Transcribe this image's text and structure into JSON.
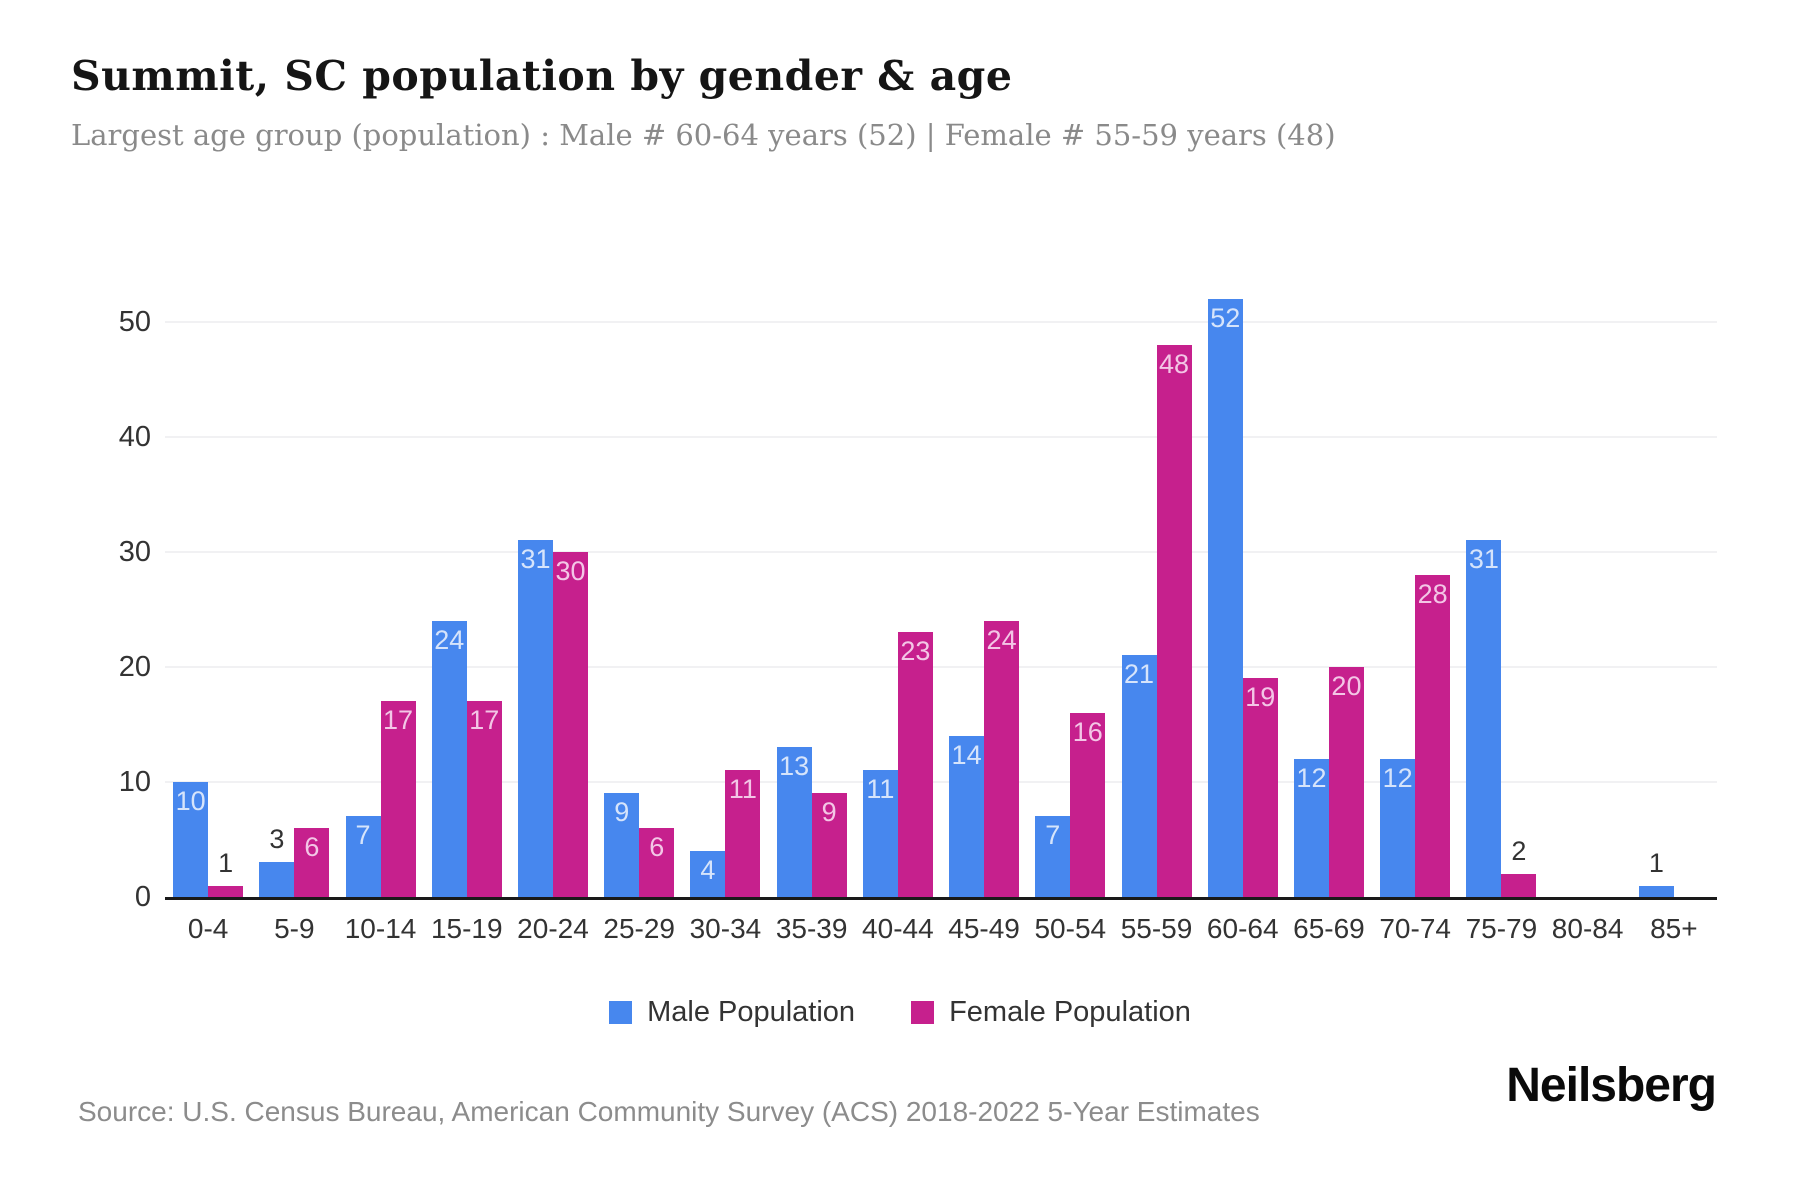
{
  "header": {
    "title": "Summit, SC population by gender & age",
    "subtitle": "Largest age group (population) : Male # 60-64 years (52) | Female # 55-59 years (48)"
  },
  "chart_data": {
    "type": "bar",
    "title": "Summit, SC population by gender & age",
    "xlabel": "",
    "ylabel": "",
    "categories": [
      "0-4",
      "5-9",
      "10-14",
      "15-19",
      "20-24",
      "25-29",
      "30-34",
      "35-39",
      "40-44",
      "45-49",
      "50-54",
      "55-59",
      "60-64",
      "65-69",
      "70-74",
      "75-79",
      "80-84",
      "85+"
    ],
    "series": [
      {
        "name": "Male Population",
        "color": "#4787ee",
        "label_color": "#d6e4fb",
        "values": [
          10,
          3,
          7,
          24,
          31,
          9,
          4,
          13,
          11,
          14,
          7,
          21,
          52,
          12,
          12,
          31,
          0,
          1
        ]
      },
      {
        "name": "Female Population",
        "color": "#c6208d",
        "label_color": "#f3c6e6",
        "values": [
          1,
          6,
          17,
          17,
          30,
          6,
          11,
          9,
          23,
          24,
          16,
          48,
          19,
          20,
          28,
          2,
          0,
          0
        ]
      }
    ],
    "yticks": [
      0,
      10,
      20,
      30,
      40,
      50
    ],
    "ylim": [
      0,
      55
    ],
    "grid": true,
    "legend_position": "bottom",
    "inside_label_threshold": 4,
    "outside_label_color": "#333333",
    "grid_color": "#f1f1f3",
    "axis_color": "#1a1a1a"
  },
  "legend": {
    "items": [
      {
        "label": "Male Population",
        "color": "#4787ee"
      },
      {
        "label": "Female Population",
        "color": "#c6208d"
      }
    ]
  },
  "footer": {
    "source": "Source: U.S. Census Bureau, American Community Survey (ACS) 2018-2022 5-Year Estimates",
    "brand": "Neilsberg"
  }
}
